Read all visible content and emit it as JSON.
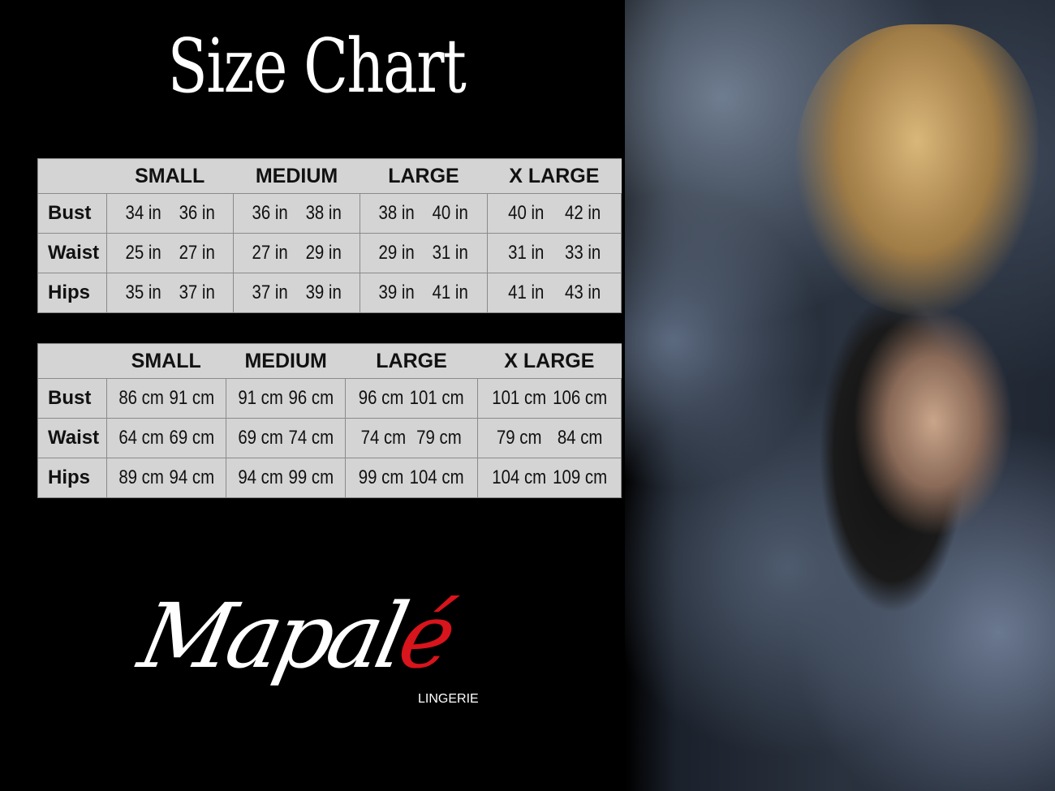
{
  "title": "Size Chart",
  "sizes": [
    "SMALL",
    "MEDIUM",
    "LARGE",
    "X LARGE"
  ],
  "inches_table": {
    "rows": [
      {
        "label": "Bust",
        "values": [
          "34 in",
          "36 in",
          "36 in",
          "38 in",
          "38 in",
          "40 in",
          "40 in",
          "42 in"
        ]
      },
      {
        "label": "Waist",
        "values": [
          "25 in",
          "27 in",
          "27 in",
          "29 in",
          "29 in",
          "31 in",
          "31 in",
          "33 in"
        ]
      },
      {
        "label": "Hips",
        "values": [
          "35 in",
          "37 in",
          "37 in",
          "39 in",
          "39 in",
          "41 in",
          "41 in",
          "43 in"
        ]
      }
    ]
  },
  "cm_table": {
    "rows": [
      {
        "label": "Bust",
        "values": [
          "86 cm",
          "91 cm",
          "91 cm",
          "96 cm",
          "96 cm",
          "101 cm",
          "101 cm",
          "106 cm"
        ]
      },
      {
        "label": "Waist",
        "values": [
          "64 cm",
          "69 cm",
          "69 cm",
          "74 cm",
          "74 cm",
          "79  cm",
          "79 cm",
          "84 cm"
        ]
      },
      {
        "label": "Hips",
        "values": [
          "89 cm",
          "94 cm",
          "94 cm",
          "99 cm",
          "99 cm",
          "104 cm",
          "104 cm",
          "109 cm"
        ]
      }
    ]
  },
  "brand": {
    "name_main": "Mapal",
    "name_accent": "é",
    "subtitle": "LINGERIE",
    "accent_color": "#d8141c"
  }
}
